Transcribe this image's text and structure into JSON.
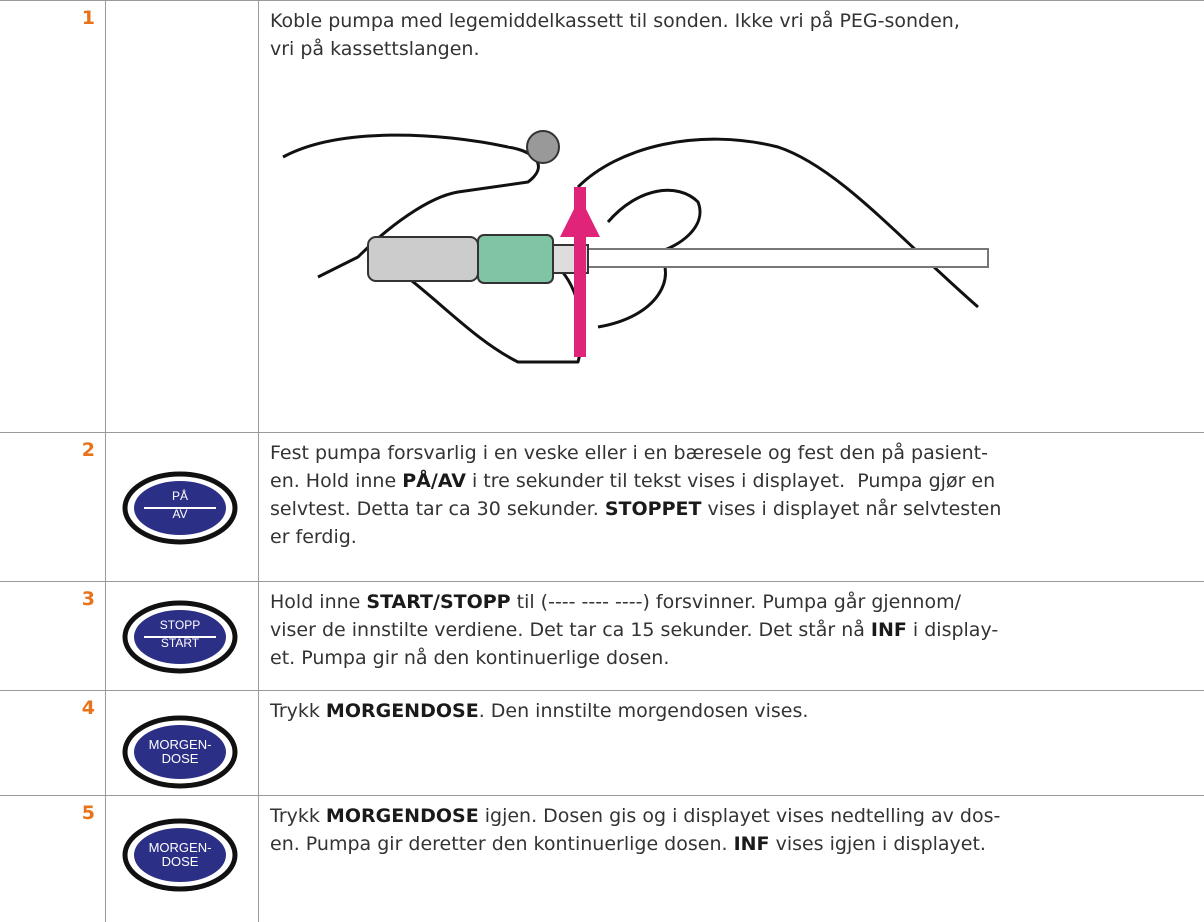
{
  "table": {
    "rows": [
      {
        "step": "1",
        "lines": [
          [
            {
              "text": "Koble pumpa med legemiddelkassett til sonden. Ikke vri på PEG-sonden,"
            }
          ],
          [
            {
              "text": "vri på kassettslangen."
            }
          ]
        ]
      },
      {
        "step": "2",
        "button": [
          "PÅ",
          "AV"
        ],
        "lines": [
          [
            {
              "text": "Fest pumpa forsvarlig i en veske eller i en bæresele og fest den på pasient-"
            }
          ],
          [
            {
              "text": "en. Hold inne "
            },
            {
              "text": "PÅ/AV",
              "bold": true
            },
            {
              "text": " i tre sekunder til tekst vises i displayet.  Pumpa gjør en"
            }
          ],
          [
            {
              "text": "selvtest. Detta tar ca 30 sekunder. "
            },
            {
              "text": "STOPPET",
              "bold": true
            },
            {
              "text": " vises i displayet når selvtesten"
            }
          ],
          [
            {
              "text": "er ferdig."
            }
          ]
        ]
      },
      {
        "step": "3",
        "button": [
          "STOPP",
          "START"
        ],
        "lines": [
          [
            {
              "text": "Hold inne "
            },
            {
              "text": "START/STOPP",
              "bold": true
            },
            {
              "text": " til (---- ---- ----) forsvinner. Pumpa går gjennom/"
            }
          ],
          [
            {
              "text": "viser de innstilte verdiene. Det tar ca 15 sekunder. Det står nå "
            },
            {
              "text": "INF",
              "bold": true
            },
            {
              "text": " i display-"
            }
          ],
          [
            {
              "text": "et. Pumpa gir nå den kontinuerlige dosen."
            }
          ]
        ]
      },
      {
        "step": "4",
        "button": [
          "MORGEN-",
          "DOSE"
        ],
        "lines": [
          [
            {
              "text": "Trykk "
            },
            {
              "text": "MORGENDOSE",
              "bold": true
            },
            {
              "text": ". Den innstilte morgendosen vises."
            }
          ]
        ]
      },
      {
        "step": "5",
        "button": [
          "MORGEN-",
          "DOSE"
        ],
        "lines": [
          [
            {
              "text": "Trykk "
            },
            {
              "text": "MORGENDOSE",
              "bold": true
            },
            {
              "text": " igjen. Dosen gis og i displayet vises nedtelling av dos-"
            }
          ],
          [
            {
              "text": "en. Pumpa gir deretter den kontinuerlige dosen. "
            },
            {
              "text": "INF",
              "bold": true
            },
            {
              "text": " vises igjen i displayet."
            }
          ]
        ]
      }
    ]
  }
}
